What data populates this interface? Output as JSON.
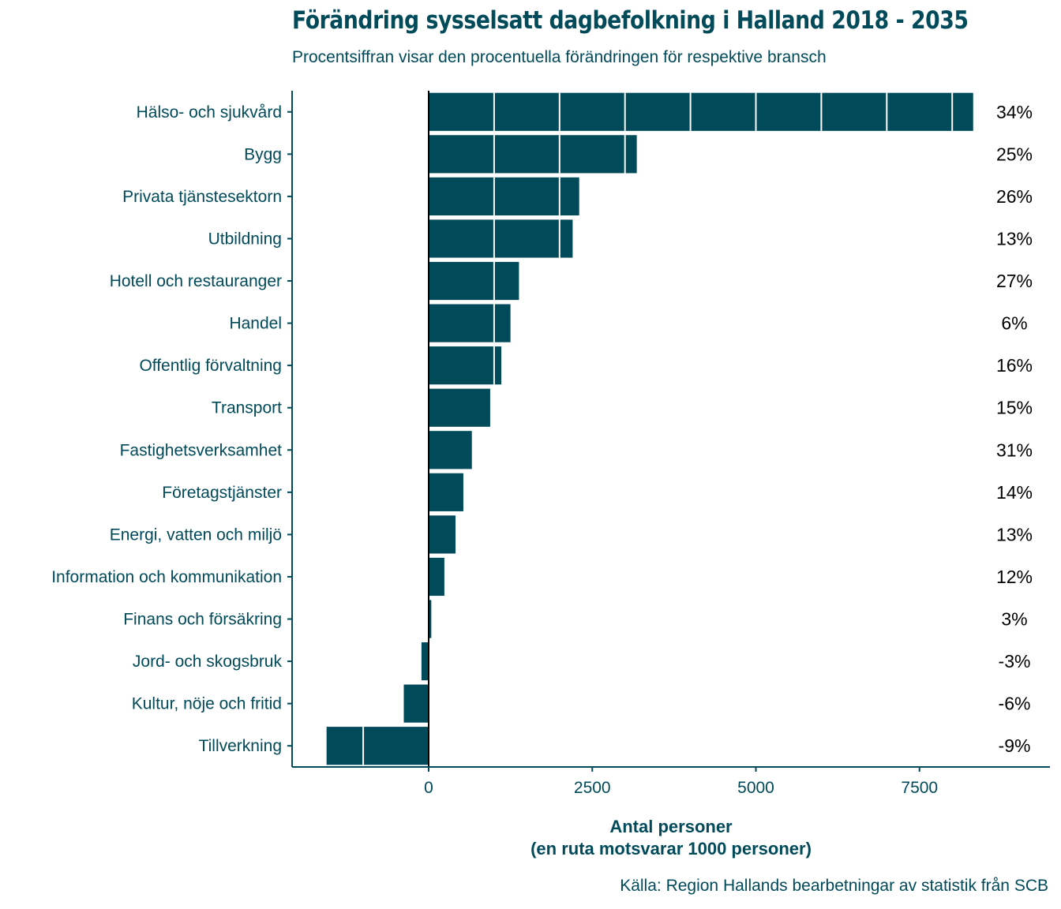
{
  "title": "Förändring sysselsatt dagbefolkning i Halland 2018 - 2035",
  "subtitle": "Procentsiffran visar den procentuella förändringen för respektive bransch",
  "xlabel_line1": "Antal personer",
  "xlabel_line2": "(en ruta motsvarar 1000 personer)",
  "caption": "Källa: Region Hallands bearbetningar av statistik från SCB",
  "colors": {
    "bar": "#004a5a",
    "axis": "#004a5a",
    "text": "#004a5a",
    "label": "#000000"
  },
  "chart_data": {
    "type": "bar",
    "orientation": "horizontal",
    "xlabel": "Antal personer (en ruta motsvarar 1000 personer)",
    "ylabel": "",
    "xlim": [
      -2100,
      9400
    ],
    "xticks": [
      0,
      2500,
      5000,
      7500
    ],
    "grid": false,
    "categories": [
      "Hälso- och sjukvård",
      "Bygg",
      "Privata tjänstesektorn",
      "Utbildning",
      "Hotell och restauranger",
      "Handel",
      "Offentlig förvaltning",
      "Transport",
      "Fastighetsverksamhet",
      "Företagstjänster",
      "Energi, vatten och miljö",
      "Information och kommunikation",
      "Finans och försäkring",
      "Jord- och skogsbruk",
      "Kultur, nöje och fritid",
      "Tillverkning"
    ],
    "values": [
      8320,
      3180,
      2300,
      2200,
      1380,
      1250,
      1110,
      940,
      660,
      530,
      410,
      240,
      40,
      -110,
      -380,
      -1560
    ],
    "percent_labels": [
      "34%",
      "25%",
      "26%",
      "13%",
      "27%",
      "6%",
      "16%",
      "15%",
      "31%",
      "14%",
      "13%",
      "12%",
      "3%",
      "-3%",
      "-6%",
      "-9%"
    ]
  }
}
